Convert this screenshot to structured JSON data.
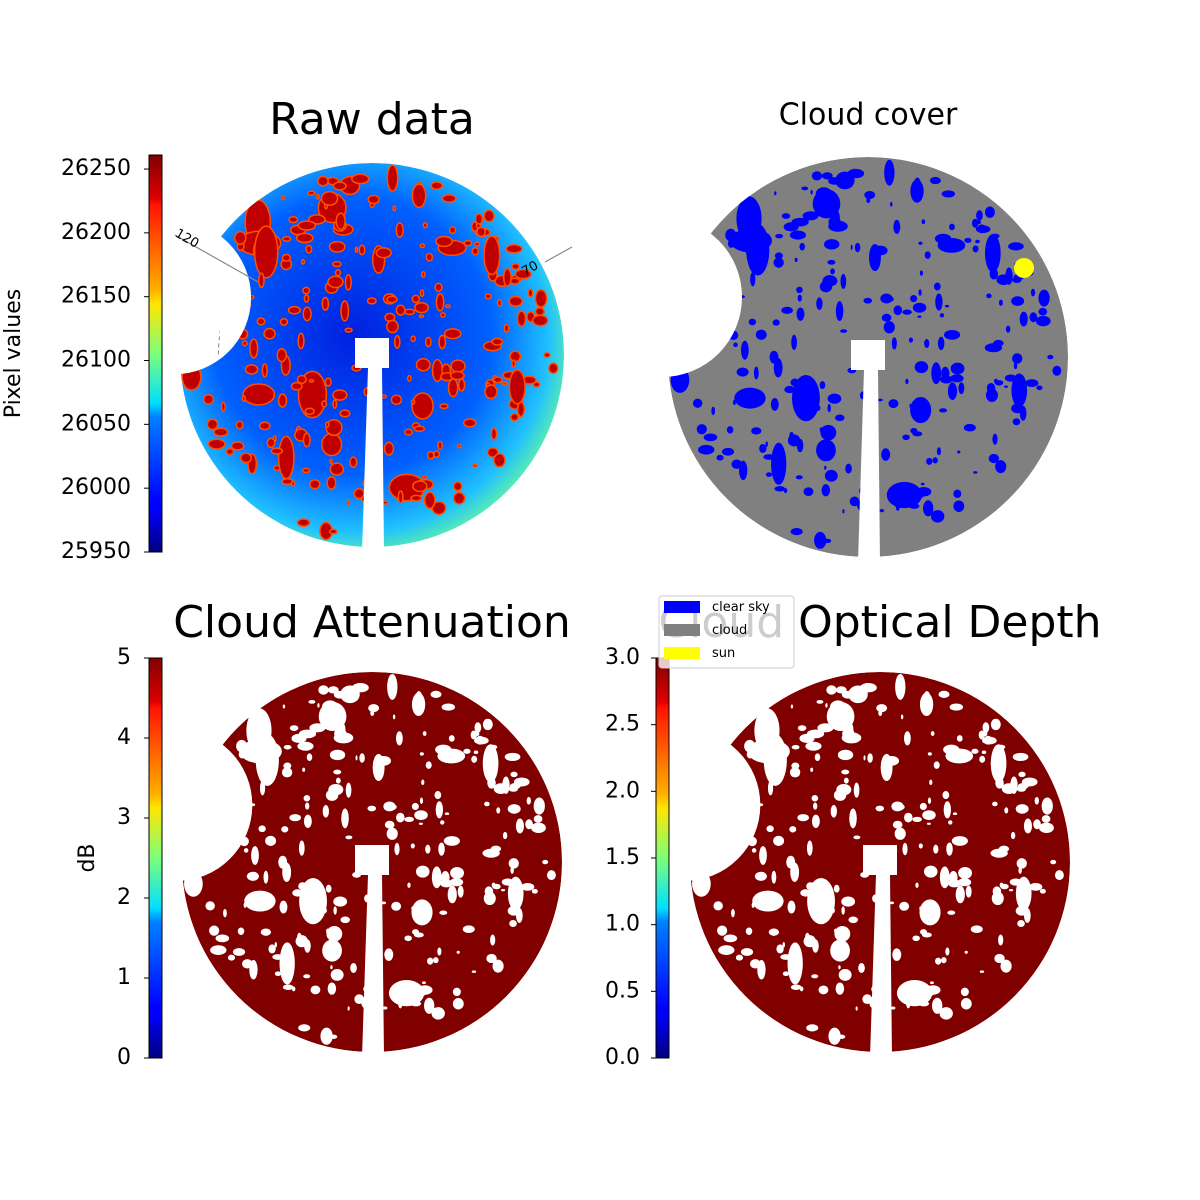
{
  "chart_data": [
    {
      "type": "image",
      "title": "Raw data",
      "colormap": "jet",
      "colorbar": {
        "label": "Pixel values",
        "ylim": [
          25950,
          26261
        ],
        "yticks": [
          25950,
          26000,
          26050,
          26100,
          26150,
          26200,
          26250
        ]
      },
      "annotations": [
        "120",
        "70"
      ]
    },
    {
      "type": "classes",
      "title": "Cloud cover",
      "series": [
        {
          "name": "clear sky",
          "color": "#0000ff"
        },
        {
          "name": "cloud",
          "color": "#808080"
        },
        {
          "name": "sun",
          "color": "#ffff00"
        }
      ]
    },
    {
      "type": "image",
      "title": "Cloud Attenuation",
      "colormap": "jet",
      "colorbar": {
        "label": "dB",
        "ylim": [
          0,
          5
        ],
        "yticks": [
          0,
          1,
          2,
          3,
          4,
          5
        ]
      }
    },
    {
      "type": "image",
      "title": "Cloud Optical Depth",
      "colormap": "jet",
      "colorbar": {
        "ylim": [
          0,
          3
        ],
        "yticks": [
          {
            "value": 0,
            "label": "0.0"
          },
          0.5,
          {
            "value": 1,
            "label": "1.0"
          },
          1.5,
          {
            "value": 2,
            "label": "2.0"
          },
          2.5,
          {
            "value": 3,
            "label": "3.0"
          }
        ]
      }
    }
  ]
}
